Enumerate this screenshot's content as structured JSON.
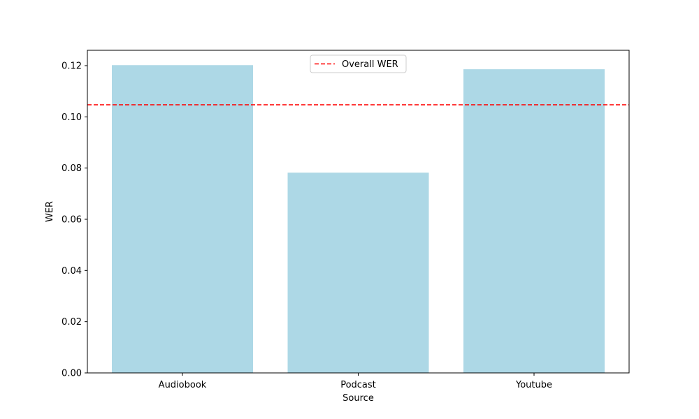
{
  "chart_data": {
    "type": "bar",
    "title": "",
    "xlabel": "Source",
    "ylabel": "WER",
    "categories": [
      "Audiobook",
      "Podcast",
      "Youtube"
    ],
    "values": [
      0.1202,
      0.0782,
      0.1186
    ],
    "ylim": [
      0,
      0.126
    ],
    "yticks": [
      "0.00",
      "0.02",
      "0.04",
      "0.06",
      "0.08",
      "0.10",
      "0.12"
    ],
    "bar_color": "#add8e6",
    "reference_line": {
      "label": "Overall WER",
      "value": 0.1047,
      "color": "#ff0000",
      "style": "dashed"
    },
    "legend": {
      "entries": [
        "Overall WER"
      ],
      "placement": "upper-center"
    },
    "grid": false
  }
}
